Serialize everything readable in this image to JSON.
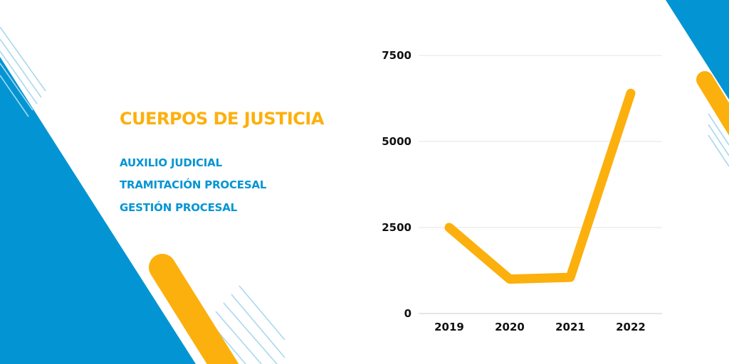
{
  "colors": {
    "blue": "#0395d3",
    "yellow": "#fcb00d",
    "line_light": "#a9d8ee",
    "gridline": "#e6e6e6"
  },
  "heading": {
    "title": "CUERPOS DE JUSTICIA",
    "items": [
      "AUXILIO JUDICIAL",
      "TRAMITACIÓN PROCESAL",
      "GESTIÓN PROCESAL"
    ]
  },
  "chart_data": {
    "type": "line",
    "categories": [
      "2019",
      "2020",
      "2021",
      "2022"
    ],
    "values": [
      2500,
      1000,
      1050,
      6400
    ],
    "yticks": [
      "0",
      "2500",
      "5000",
      "7500"
    ],
    "ylim": [
      0,
      7500
    ],
    "grid": true,
    "title": "",
    "xlabel": "",
    "ylabel": ""
  }
}
